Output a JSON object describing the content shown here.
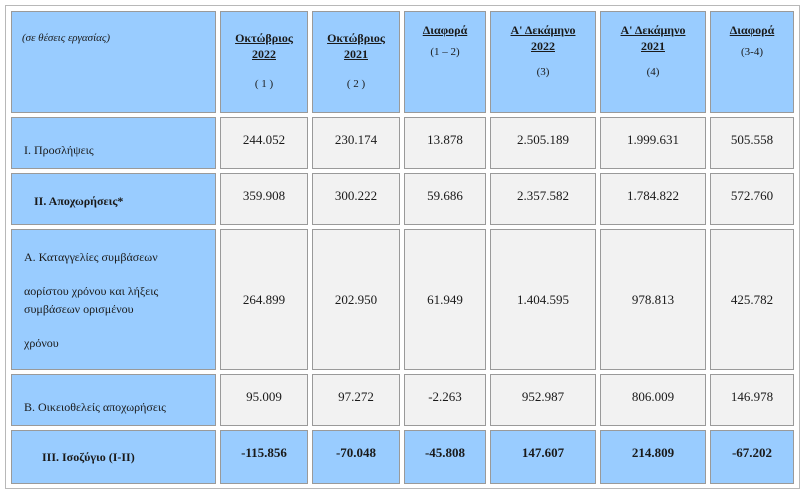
{
  "header": {
    "note": "(σε θέσεις εργασίας)",
    "columns": [
      {
        "title_line1": "Οκτώβριος",
        "title_line2": "2022",
        "sub": "( 1 )"
      },
      {
        "title_line1": "Οκτώβριος",
        "title_line2": "2021",
        "sub": "( 2 )"
      },
      {
        "title_line1": "Διαφορά",
        "title_line2": "",
        "sub": "(1 – 2)"
      },
      {
        "title_line1": "Α' Δεκάμηνο",
        "title_line2": "2022",
        "sub": "(3)"
      },
      {
        "title_line1": "Α' Δεκάμηνο",
        "title_line2": "2021",
        "sub": "(4)"
      },
      {
        "title_line1": "Διαφορά",
        "title_line2": "",
        "sub": "(3-4)"
      }
    ]
  },
  "rows": [
    {
      "label": "Ι. Προσλήψεις",
      "values": [
        "244.052",
        "230.174",
        "13.878",
        "2.505.189",
        "1.999.631",
        "505.558"
      ]
    },
    {
      "label": "ΙΙ. Αποχωρήσεις*",
      "values": [
        "359.908",
        "300.222",
        "59.686",
        "2.357.582",
        "1.784.822",
        "572.760"
      ]
    },
    {
      "label_lines": [
        "Α. Καταγγελίες συμβάσεων",
        "αορίστου χρόνου  και λήξεις",
        "συμβάσεων ορισμένου",
        "χρόνου"
      ],
      "values": [
        "264.899",
        "202.950",
        "61.949",
        "1.404.595",
        "978.813",
        "425.782"
      ]
    },
    {
      "label": "Β. Οικειοθελείς  αποχωρήσεις",
      "values": [
        "95.009",
        "97.272",
        "-2.263",
        "952.987",
        "806.009",
        "146.978"
      ]
    },
    {
      "label": "ΙΙΙ. Ισοζύγιο (Ι-ΙΙ)",
      "values": [
        "-115.856",
        "-70.048",
        "-45.808",
        "147.607",
        "214.809",
        "-67.202"
      ]
    }
  ]
}
